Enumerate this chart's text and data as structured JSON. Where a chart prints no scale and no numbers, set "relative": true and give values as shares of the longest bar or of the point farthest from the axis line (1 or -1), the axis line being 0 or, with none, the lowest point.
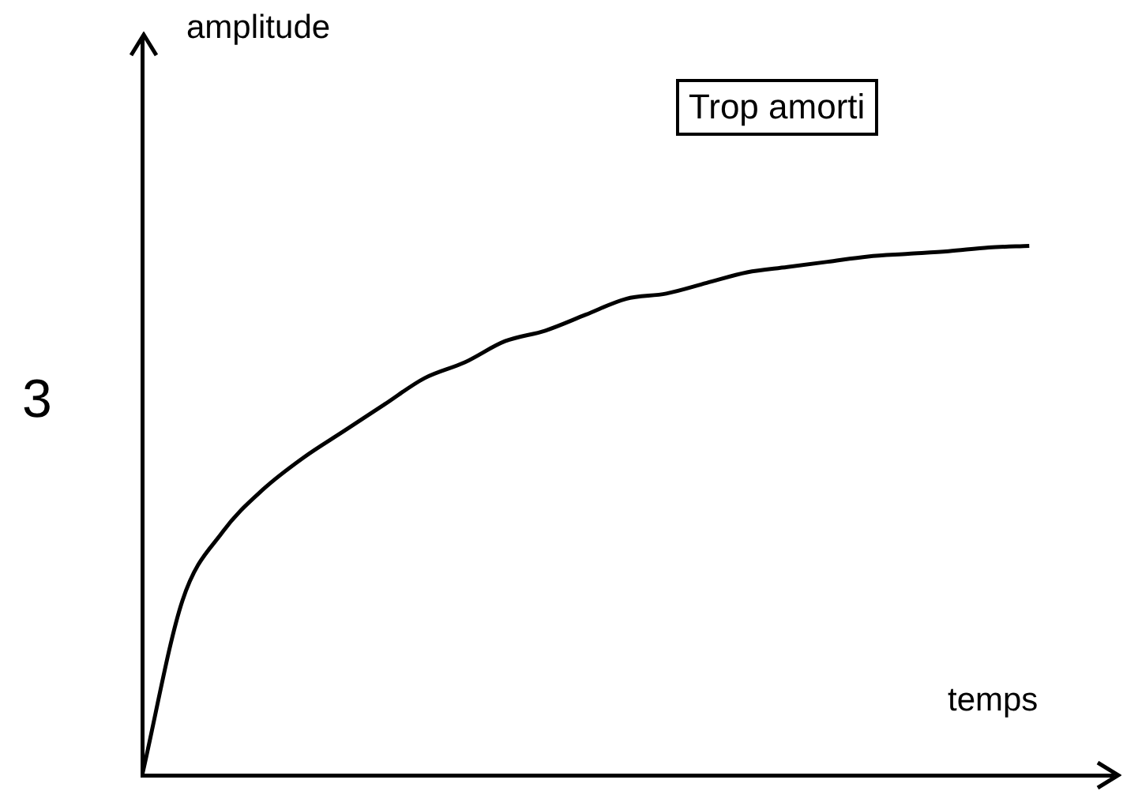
{
  "chart_data": {
    "type": "line",
    "title": "Trop amorti",
    "xlabel": "temps",
    "annotations": [
      "amplitude",
      "3"
    ],
    "relative": true,
    "grid": false,
    "legend": false,
    "marker": "none",
    "line_style": "solid",
    "categories": [
      null,
      null,
      null,
      null,
      null,
      null,
      null,
      null,
      null,
      null,
      null,
      null,
      null,
      null,
      null,
      null,
      null,
      null,
      null,
      null,
      null,
      null,
      null
    ],
    "series": [
      {
        "color": "#000000",
        "values": [
          0,
          0.33,
          0.46,
          0.54,
          0.6,
          0.65,
          0.7,
          0.75,
          0.78,
          0.82,
          0.84,
          0.87,
          0.9,
          0.91,
          0.93,
          0.95,
          0.96,
          0.97,
          0.98,
          0.985,
          0.99,
          0.997,
          1
        ]
      }
    ]
  }
}
